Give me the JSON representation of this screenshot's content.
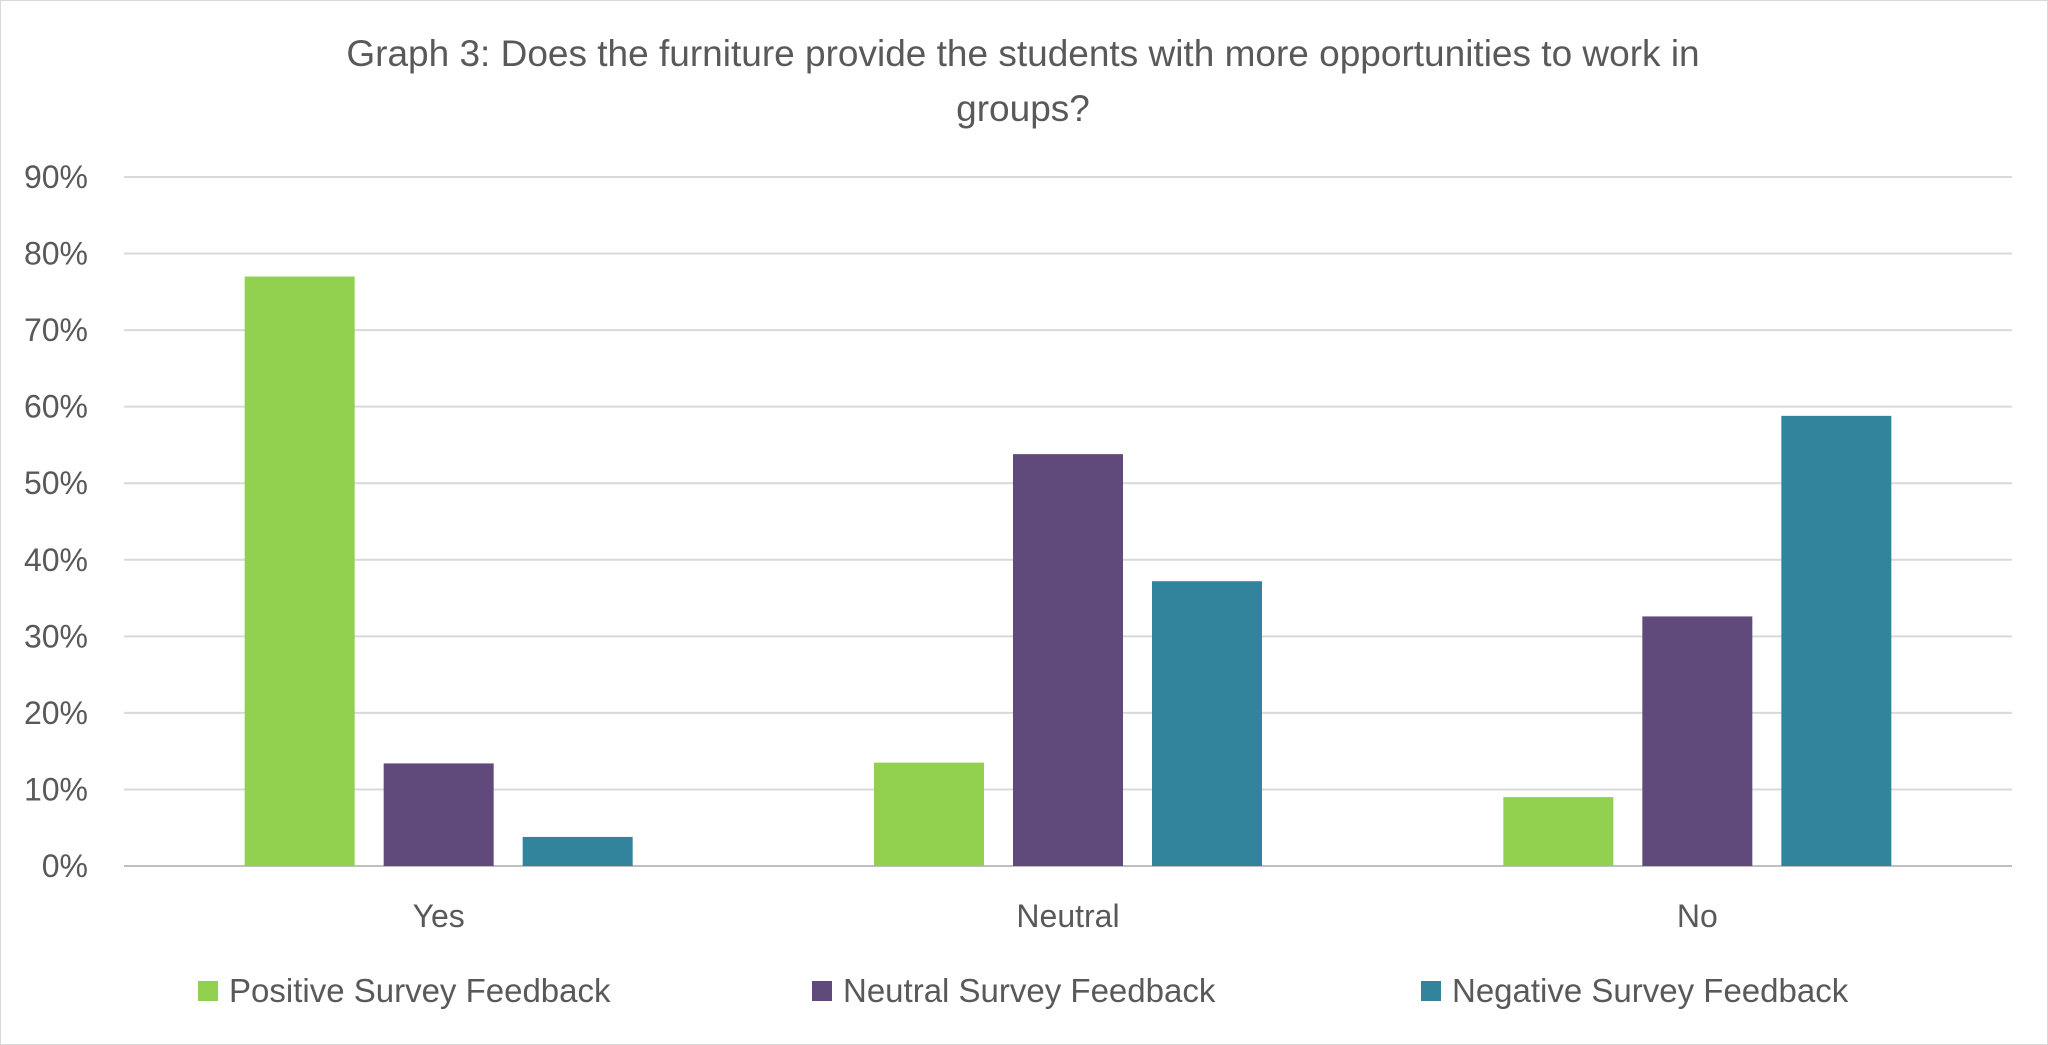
{
  "chart_data": {
    "type": "bar",
    "title_line1": "Graph 3: Does the furniture provide the students with more opportunities to work in",
    "title_line2": "groups?",
    "categories": [
      "Yes",
      "Neutral",
      "No"
    ],
    "series": [
      {
        "name": "Positive Survey Feedback",
        "color": "#92d050",
        "values": [
          77,
          13.5,
          9
        ]
      },
      {
        "name": "Neutral Survey Feedback",
        "color": "#604a7b",
        "values": [
          13.4,
          53.8,
          32.6
        ]
      },
      {
        "name": "Negative Survey Feedback",
        "color": "#31849b",
        "values": [
          3.8,
          37.2,
          58.8
        ]
      }
    ],
    "yticks": [
      "0%",
      "10%",
      "20%",
      "30%",
      "40%",
      "50%",
      "60%",
      "70%",
      "80%",
      "90%"
    ],
    "ylim": [
      0,
      90
    ],
    "grid": true,
    "legend": "bottom",
    "xlabel": "",
    "ylabel": ""
  }
}
